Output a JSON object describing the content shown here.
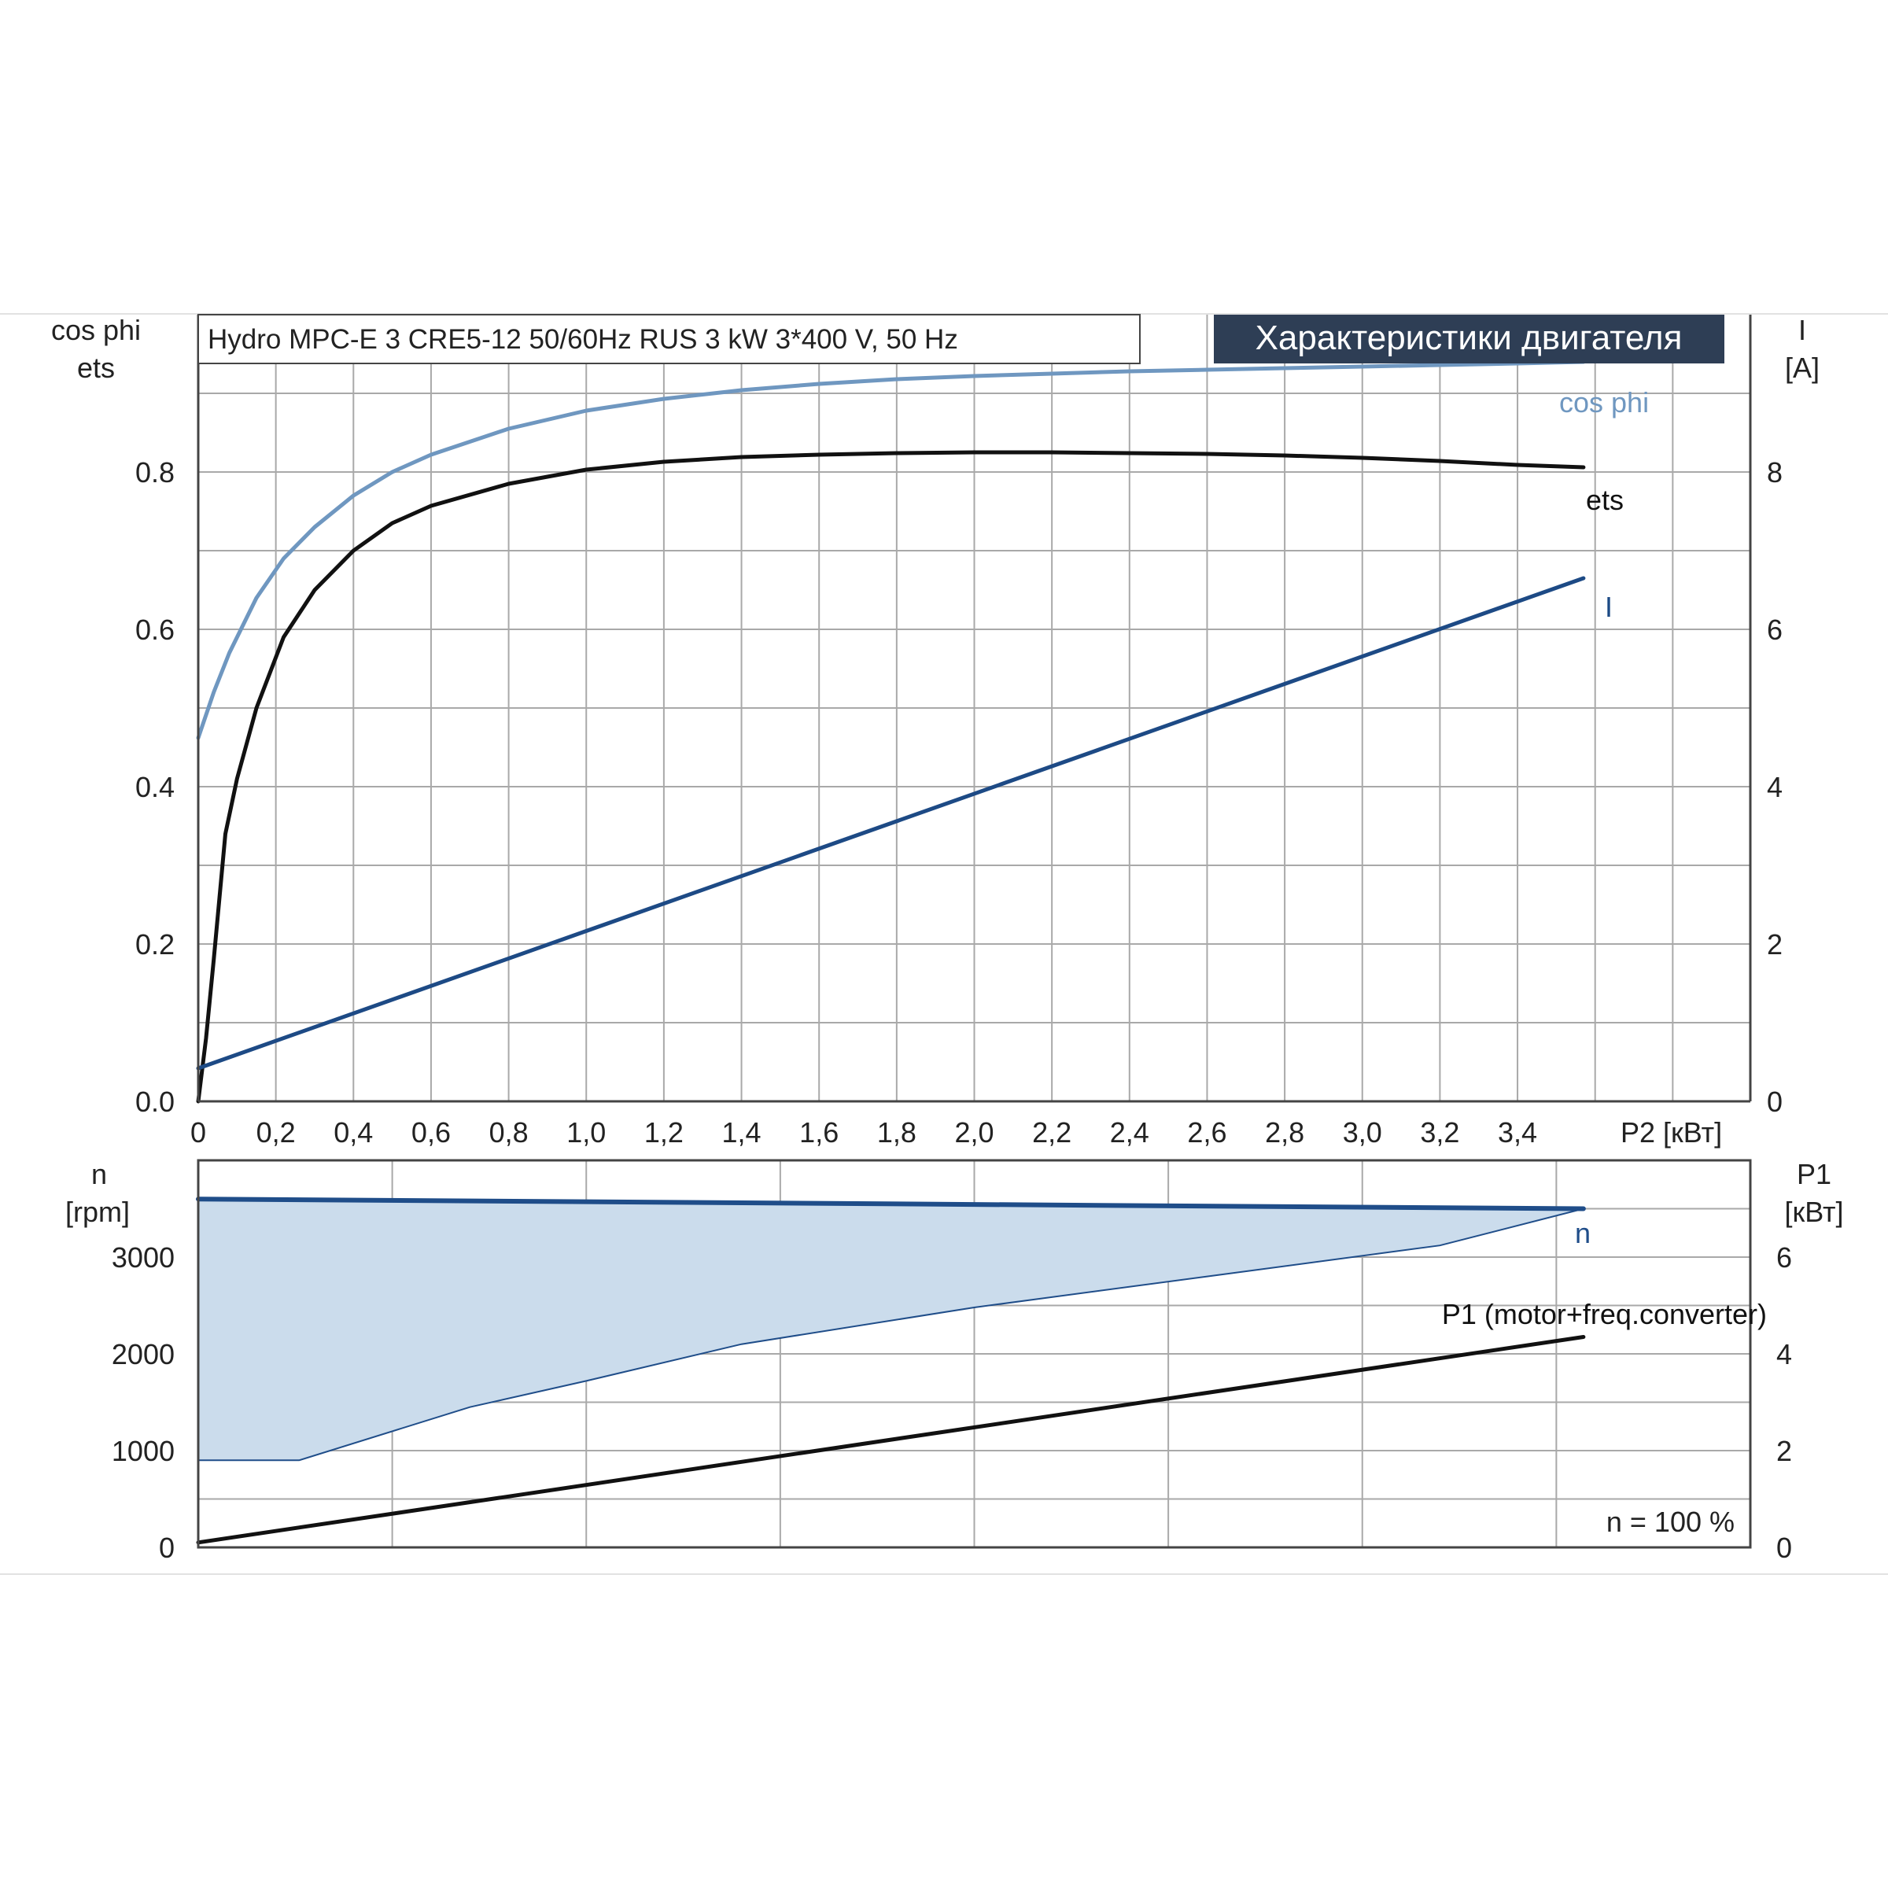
{
  "colors": {
    "grid": "#a9a9a9",
    "frame": "#444444",
    "cos_phi": "#6f97c0",
    "ets": "#111111",
    "current": "#1d4a85",
    "speed": "#1f4d89",
    "speed_fill": "#cbdcec",
    "p1": "#111111",
    "title_bg": "#2e3e55",
    "title_fg": "#ffffff"
  },
  "chart_data": [
    {
      "type": "line",
      "title": "Характеристики двигателя",
      "subtitle": "Hydro MPC-E 3 CRE5-12 50/60Hz RUS   3 kW   3*400 V, 50 Hz",
      "xlabel": "P2 [кВт]",
      "ylabel_left": [
        "cos phi",
        "ets"
      ],
      "ylabel_right": [
        "I",
        "[A]"
      ],
      "xlim": [
        0,
        4.0
      ],
      "ylim_left": [
        0,
        1.0
      ],
      "ylim_right": [
        0,
        10
      ],
      "x_ticks": [
        "0",
        "0,2",
        "0,4",
        "0,6",
        "0,8",
        "1,0",
        "1,2",
        "1,4",
        "1,6",
        "1,8",
        "2,0",
        "2,2",
        "2,4",
        "2,6",
        "2,8",
        "3,0",
        "3,2",
        "3,4"
      ],
      "y_ticks_left": [
        "0.0",
        "0.2",
        "0.4",
        "0.6",
        "0.8"
      ],
      "y_ticks_right": [
        "0",
        "2",
        "4",
        "6",
        "8"
      ],
      "grid": true,
      "series": [
        {
          "name": "cos phi",
          "axis": "left",
          "x": [
            0,
            0.04,
            0.08,
            0.15,
            0.22,
            0.3,
            0.4,
            0.5,
            0.6,
            0.8,
            1.0,
            1.2,
            1.4,
            1.6,
            1.8,
            2.0,
            2.2,
            2.4,
            2.6,
            2.8,
            3.0,
            3.2,
            3.4,
            3.57
          ],
          "y": [
            0.462,
            0.52,
            0.57,
            0.64,
            0.69,
            0.73,
            0.77,
            0.8,
            0.822,
            0.855,
            0.878,
            0.893,
            0.904,
            0.912,
            0.918,
            0.922,
            0.925,
            0.928,
            0.93,
            0.932,
            0.934,
            0.936,
            0.938,
            0.94
          ]
        },
        {
          "name": "ets",
          "axis": "left",
          "x": [
            0,
            0.02,
            0.04,
            0.07,
            0.1,
            0.15,
            0.22,
            0.3,
            0.4,
            0.5,
            0.6,
            0.8,
            1.0,
            1.2,
            1.4,
            1.6,
            1.8,
            2.0,
            2.2,
            2.4,
            2.6,
            2.8,
            3.0,
            3.2,
            3.4,
            3.57
          ],
          "y": [
            0,
            0.08,
            0.18,
            0.34,
            0.41,
            0.5,
            0.59,
            0.65,
            0.7,
            0.735,
            0.757,
            0.785,
            0.803,
            0.813,
            0.819,
            0.822,
            0.824,
            0.825,
            0.825,
            0.824,
            0.823,
            0.821,
            0.818,
            0.814,
            0.809,
            0.806
          ]
        },
        {
          "name": "I",
          "axis": "right",
          "x": [
            0,
            3.57
          ],
          "y": [
            0.42,
            6.65
          ]
        }
      ]
    },
    {
      "type": "line",
      "ylabel_left": [
        "n",
        "[rpm]"
      ],
      "ylabel_right": [
        "P1",
        "[кВт]"
      ],
      "xlim": [
        0,
        4.0
      ],
      "ylim_left": [
        0,
        4000
      ],
      "ylim_right": [
        0,
        8
      ],
      "y_ticks_left": [
        "0",
        "1000",
        "2000",
        "3000"
      ],
      "y_ticks_right": [
        "0",
        "2",
        "4",
        "6"
      ],
      "grid": true,
      "annotation": "n = 100 %",
      "series": [
        {
          "name": "n",
          "axis": "left",
          "x": [
            0,
            3.57
          ],
          "y": [
            3600,
            3500
          ]
        },
        {
          "name": "P1 (motor+freq.converter)",
          "axis": "right",
          "x": [
            0,
            3.57
          ],
          "y": [
            0.1,
            4.35
          ]
        }
      ],
      "area": {
        "axis": "left",
        "upper_x": [
          0,
          3.57
        ],
        "upper_y": [
          3600,
          3500
        ],
        "lower_x": [
          0,
          0.26,
          0.7,
          1.0,
          1.4,
          2.0,
          2.6,
          3.2,
          3.57
        ],
        "lower_y": [
          900,
          900,
          1450,
          1720,
          2100,
          2480,
          2800,
          3120,
          3500
        ]
      }
    }
  ]
}
